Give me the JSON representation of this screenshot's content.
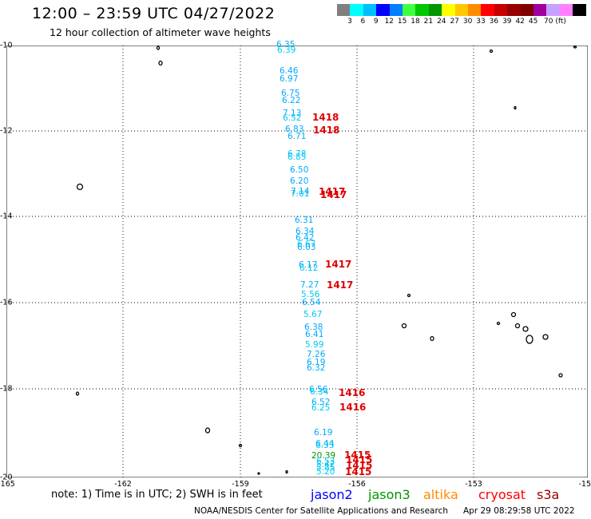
{
  "title": "12:00 – 23:59 UTC 04/27/2022",
  "subtitle": "12 hour collection of altimeter wave heights",
  "scale": {
    "colors": [
      "#808080",
      "#00ffff",
      "#00bfff",
      "#0000ff",
      "#0080ff",
      "#40ff40",
      "#00c800",
      "#009600",
      "#ffff00",
      "#ffc800",
      "#ff8c00",
      "#ff0000",
      "#c80000",
      "#960000",
      "#800000",
      "#a000a0",
      "#c8a0ff",
      "#ff80ff",
      "#000000"
    ],
    "labels": [
      "3",
      "6",
      "9",
      "12",
      "15",
      "18",
      "21",
      "24",
      "27",
      "30",
      "33",
      "36",
      "39",
      "42",
      "45",
      "70 (ft)"
    ]
  },
  "x_ticks": [
    "-165",
    "-162",
    "-159",
    "-156",
    "-153",
    "-15"
  ],
  "y_ticks": [
    "-10",
    "-12",
    "-14",
    "-16",
    "-18",
    "-20"
  ],
  "wave_labels": [
    {
      "text": "6.35",
      "c": "#00aaff"
    },
    {
      "text": "6.39",
      "c": "#00c8f0"
    },
    {
      "text": "6.46",
      "c": "#00aaff"
    },
    {
      "text": "6.97",
      "c": "#00aaff"
    },
    {
      "text": "6.75",
      "c": "#00aaff"
    },
    {
      "text": "6.22",
      "c": "#00aaff"
    },
    {
      "text": "7.13",
      "c": "#00aaff"
    },
    {
      "text": "6.52",
      "c": "#00c8f0"
    },
    {
      "text": "6.83",
      "c": "#00aaff"
    },
    {
      "text": "6.71",
      "c": "#00aaff"
    },
    {
      "text": "6.78",
      "c": "#00c8f0"
    },
    {
      "text": "6.85",
      "c": "#00c8f0"
    },
    {
      "text": "6.50",
      "c": "#00aaff"
    },
    {
      "text": "6.20",
      "c": "#00aaff"
    },
    {
      "text": "7.14",
      "c": "#00aaff"
    },
    {
      "text": "7.01",
      "c": "#00c8f0"
    },
    {
      "text": "6.31",
      "c": "#00aaff"
    },
    {
      "text": "6.34",
      "c": "#00aaff"
    },
    {
      "text": "6.42",
      "c": "#00aaff"
    },
    {
      "text": "6.67",
      "c": "#00c8f0"
    },
    {
      "text": "6.03",
      "c": "#00aaff"
    },
    {
      "text": "6.17",
      "c": "#00aaff"
    },
    {
      "text": "6.12",
      "c": "#00c8f0"
    },
    {
      "text": "7.27",
      "c": "#00aaff"
    },
    {
      "text": "5.56",
      "c": "#00c8f0"
    },
    {
      "text": "6.54",
      "c": "#00aaff"
    },
    {
      "text": "5.67",
      "c": "#00c8f0"
    },
    {
      "text": "6.38",
      "c": "#00aaff"
    },
    {
      "text": "6.41",
      "c": "#00aaff"
    },
    {
      "text": "5.99",
      "c": "#00c8f0"
    },
    {
      "text": "7.26",
      "c": "#00aaff"
    },
    {
      "text": "6.19",
      "c": "#00aaff"
    },
    {
      "text": "6.32",
      "c": "#00aaff"
    },
    {
      "text": "6.56",
      "c": "#00aaff"
    },
    {
      "text": "6.34",
      "c": "#00c8f0"
    },
    {
      "text": "6.52",
      "c": "#00aaff"
    },
    {
      "text": "6.25",
      "c": "#00c8f0"
    },
    {
      "text": "6.19",
      "c": "#00aaff"
    },
    {
      "text": "6.44",
      "c": "#00aaff"
    },
    {
      "text": "6.33",
      "c": "#00c8f0"
    },
    {
      "text": "20.39",
      "c": "#009600"
    },
    {
      "text": "6.53",
      "c": "#00c8f0"
    },
    {
      "text": "5.42",
      "c": "#00c8f0"
    },
    {
      "text": "5.85",
      "c": "#00c8f0"
    },
    {
      "text": "5.20",
      "c": "#00c8f0"
    }
  ],
  "time_labels": [
    "1418",
    "1418",
    "1417",
    "1417",
    "1417",
    "1417",
    "1416",
    "1416",
    "1415",
    "1415",
    "1415",
    "1415"
  ],
  "note": "note: 1) Time is in UTC; 2) SWH is in feet",
  "satellites": [
    {
      "name": "jason2",
      "color": "#0000ff"
    },
    {
      "name": "jason3",
      "color": "#009600"
    },
    {
      "name": "altika",
      "color": "#ff8c00"
    },
    {
      "name": "cryosat",
      "color": "#ff0000"
    },
    {
      "name": "s3a",
      "color": "#960000"
    }
  ],
  "credit": "NOAA/NESDIS Center for Satellite Applications and Research",
  "timestamp": "Apr 29 08:29:58 UTC 2022"
}
